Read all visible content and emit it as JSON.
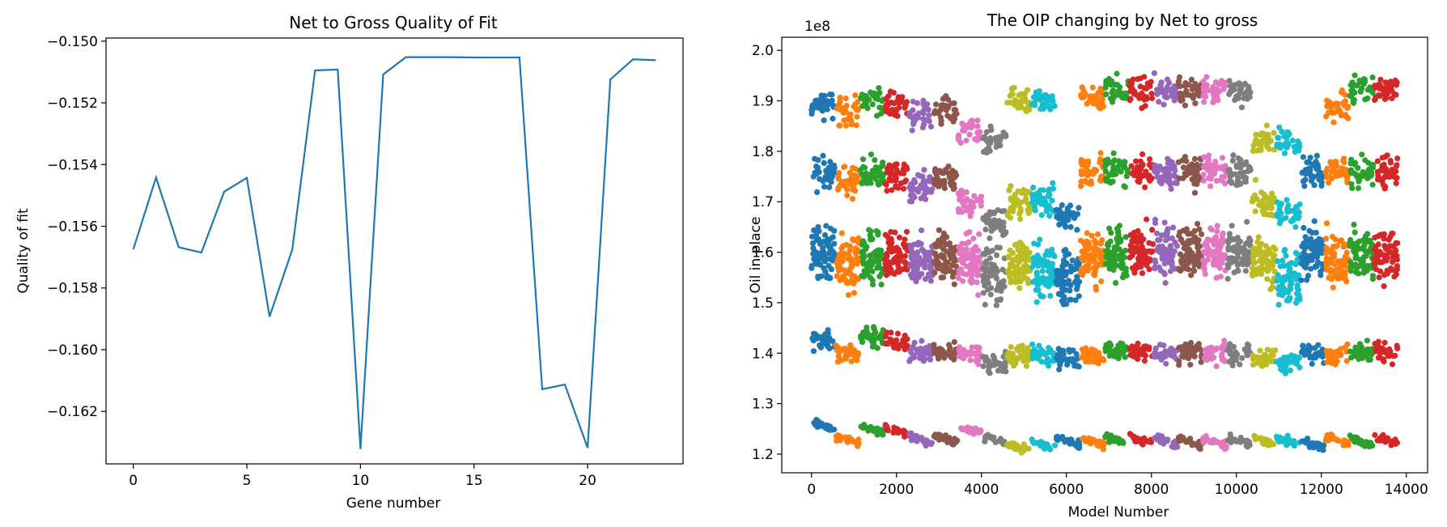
{
  "chart_data": [
    {
      "type": "line",
      "title": "Net to Gross Quality of Fit",
      "xlabel": "Gene number",
      "ylabel": "Quality of fit",
      "xlim": [
        -1.2,
        24.2
      ],
      "ylim": [
        -0.1637,
        -0.1499
      ],
      "xticks": [
        0,
        5,
        10,
        15,
        20
      ],
      "xtick_labels": [
        "0",
        "5",
        "10",
        "15",
        "20"
      ],
      "yticks": [
        -0.15,
        -0.152,
        -0.154,
        -0.156,
        -0.158,
        -0.16,
        -0.162
      ],
      "ytick_labels": [
        "−0.150",
        "−0.152",
        "−0.154",
        "−0.156",
        "−0.158",
        "−0.160",
        "−0.162"
      ],
      "grid": false,
      "color": "#1f77b4",
      "series": [
        {
          "x": [
            0,
            1,
            2,
            3,
            4,
            5,
            6,
            7,
            8,
            9,
            10,
            11,
            12,
            13,
            14,
            15,
            16,
            17,
            18,
            19,
            20,
            21,
            22,
            23
          ],
          "values": [
            -0.15675,
            -0.15442,
            -0.15668,
            -0.15685,
            -0.15488,
            -0.15443,
            -0.15893,
            -0.15675,
            -0.15095,
            -0.15092,
            -0.16322,
            -0.15108,
            -0.15052,
            -0.15052,
            -0.15052,
            -0.15053,
            -0.15053,
            -0.15053,
            -0.16128,
            -0.16113,
            -0.16318,
            -0.15124,
            -0.15059,
            -0.15062
          ]
        }
      ]
    },
    {
      "type": "scatter",
      "title": "The OIP changing by Net to gross",
      "xlabel": "Model Number",
      "ylabel": "Oil in place",
      "y_offset_label": "1e8",
      "xlim": [
        -700,
        14500
      ],
      "ylim": [
        1.163,
        2.026
      ],
      "xticks": [
        0,
        2000,
        4000,
        6000,
        8000,
        10000,
        12000,
        14000
      ],
      "xtick_labels": [
        "0",
        "2000",
        "4000",
        "6000",
        "8000",
        "10000",
        "12000",
        "14000"
      ],
      "yticks": [
        1.2,
        1.3,
        1.4,
        1.5,
        1.6,
        1.7,
        1.8,
        1.9,
        2.0
      ],
      "ytick_labels": [
        "1.2",
        "1.3",
        "1.4",
        "1.5",
        "1.6",
        "1.7",
        "1.8",
        "1.9",
        "2.0"
      ],
      "grid": false,
      "palette": [
        "#1f77b4",
        "#ff7f0e",
        "#2ca02c",
        "#d62728",
        "#9467bd",
        "#8c564b",
        "#e377c2",
        "#7f7f7f",
        "#bcbd22",
        "#17becf"
      ],
      "series_width": 576,
      "series_count": 24,
      "groups": {
        "bottom": [
          1.263,
          1.235,
          1.257,
          1.253,
          1.235,
          1.238,
          1.256,
          1.235,
          1.222,
          1.224,
          1.232,
          1.232,
          1.233,
          1.234,
          1.234,
          1.232,
          1.23,
          1.233,
          1.234,
          1.232,
          1.228,
          1.234,
          1.231,
          1.234
        ],
        "low": [
          1.425,
          1.4,
          1.43,
          1.42,
          1.4,
          1.405,
          1.4,
          1.38,
          1.395,
          1.395,
          1.39,
          1.395,
          1.405,
          1.405,
          1.4,
          1.4,
          1.4,
          1.395,
          1.39,
          1.38,
          1.4,
          1.4,
          1.4,
          1.4
        ],
        "mid": [
          1.6,
          1.58,
          1.59,
          1.59,
          1.58,
          1.59,
          1.58,
          1.55,
          1.58,
          1.56,
          1.55,
          1.59,
          1.6,
          1.6,
          1.6,
          1.6,
          1.6,
          1.6,
          1.58,
          1.55,
          1.6,
          1.59,
          1.59,
          1.6
        ],
        "upper": [
          1.755,
          1.74,
          1.755,
          1.75,
          1.73,
          1.745,
          1.7,
          1.66,
          1.7,
          1.7,
          1.67,
          1.76,
          1.76,
          1.76,
          1.76,
          1.76,
          1.76,
          1.76,
          1.7,
          1.68,
          1.76,
          1.76,
          1.76,
          1.76
        ],
        "top": [
          1.895,
          1.88,
          1.895,
          1.89,
          1.87,
          1.88,
          1.84,
          1.82,
          1.9,
          1.9,
          null,
          1.91,
          1.92,
          1.92,
          1.92,
          1.92,
          1.92,
          1.92,
          1.82,
          1.82,
          null,
          1.89,
          1.92,
          1.92
        ]
      }
    }
  ]
}
